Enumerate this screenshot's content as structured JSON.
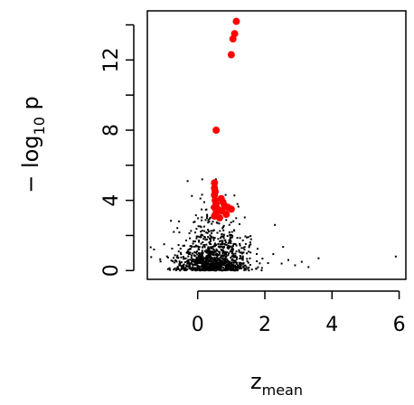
{
  "chart_data": {
    "type": "scatter",
    "title": "",
    "xlabel": {
      "main": "z",
      "sub": "mean"
    },
    "ylabel": {
      "prefix": "− log",
      "sub": "10",
      "suffix": " p"
    },
    "xlim": [
      -1.5,
      6.2
    ],
    "ylim": [
      -0.5,
      14.8
    ],
    "x_ticks": [
      0,
      2,
      4,
      6
    ],
    "x_tick_labels": [
      "0",
      "2",
      "4",
      "6"
    ],
    "y_ticks": [
      0,
      4,
      8,
      12
    ],
    "y_tick_labels": [
      "0",
      "4",
      "8",
      "12"
    ],
    "y_minor_ticks": [
      2,
      6,
      10,
      14
    ],
    "grid": false,
    "legend": "none",
    "colors": {
      "background_points": "#000000",
      "highlighted_points": "#ff0000"
    },
    "series": [
      {
        "description": "background",
        "color": "#000000",
        "cloud": {
          "n": 1100,
          "x_center": 0.45,
          "x_spread": 0.55,
          "y_scale": 0.85,
          "y_max": 5.2,
          "x_min": -1.4,
          "x_max": 2.6
        },
        "outliers": [
          {
            "x": 2.5,
            "y": 0.4
          },
          {
            "x": 2.7,
            "y": 0.6
          },
          {
            "x": 2.9,
            "y": 0.3
          },
          {
            "x": 3.1,
            "y": 0.5
          },
          {
            "x": 3.3,
            "y": 0.2
          },
          {
            "x": 3.6,
            "y": 0.7
          },
          {
            "x": 5.9,
            "y": 0.8
          },
          {
            "x": 2.3,
            "y": 2.6
          },
          {
            "x": -1.0,
            "y": 1.5
          },
          {
            "x": -1.3,
            "y": 1.2
          },
          {
            "x": -0.3,
            "y": 5.1
          }
        ]
      },
      {
        "description": "highlighted",
        "color": "#ff0000",
        "points": [
          {
            "x": 1.15,
            "y": 14.2
          },
          {
            "x": 1.1,
            "y": 13.5
          },
          {
            "x": 1.05,
            "y": 13.2
          },
          {
            "x": 1.0,
            "y": 12.3
          },
          {
            "x": 0.55,
            "y": 8.0
          },
          {
            "x": 0.5,
            "y": 5.0
          },
          {
            "x": 0.5,
            "y": 4.7
          },
          {
            "x": 0.52,
            "y": 4.5
          },
          {
            "x": 0.5,
            "y": 4.3
          },
          {
            "x": 0.52,
            "y": 4.0
          },
          {
            "x": 0.55,
            "y": 3.8
          },
          {
            "x": 0.5,
            "y": 3.6
          },
          {
            "x": 0.6,
            "y": 3.5
          },
          {
            "x": 0.55,
            "y": 3.3
          },
          {
            "x": 0.5,
            "y": 3.1
          },
          {
            "x": 0.7,
            "y": 4.1
          },
          {
            "x": 0.75,
            "y": 3.9
          },
          {
            "x": 0.8,
            "y": 3.7
          },
          {
            "x": 0.72,
            "y": 3.4
          },
          {
            "x": 0.9,
            "y": 3.6
          },
          {
            "x": 1.0,
            "y": 3.5
          },
          {
            "x": 0.85,
            "y": 3.2
          },
          {
            "x": 0.65,
            "y": 3.0
          }
        ]
      }
    ]
  }
}
